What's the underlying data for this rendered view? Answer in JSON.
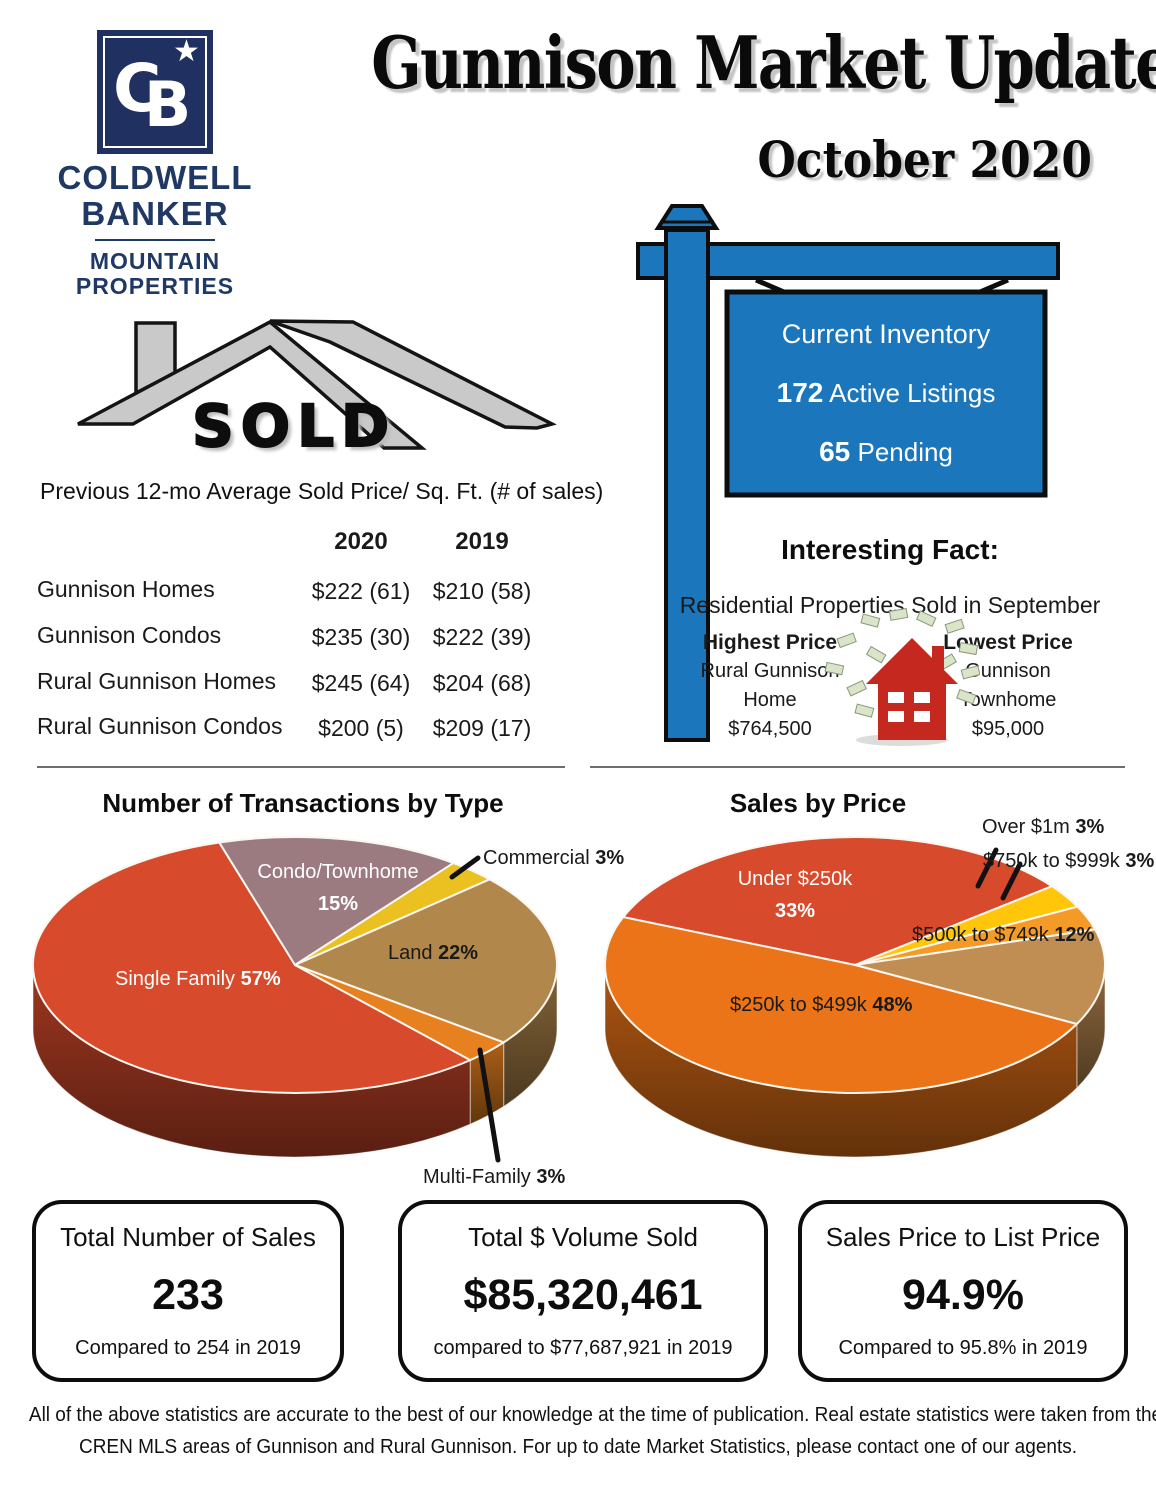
{
  "logo": {
    "monogram_c": "C",
    "monogram_b": "B",
    "star": "★",
    "name_line1": "COLDWELL",
    "name_line2": "BANKER",
    "division_line1": "MOUNTAIN",
    "division_line2": "PROPERTIES"
  },
  "header": {
    "title": "Gunnison Market Update",
    "subtitle": "October 2020"
  },
  "sold_graphic": {
    "label": "SOLD"
  },
  "inventory_sign": {
    "title": "Current Inventory",
    "active_value": "172",
    "active_label": " Active Listings",
    "pending_value": "65",
    "pending_label": " Pending"
  },
  "price_table": {
    "caption": "Previous 12-mo Average Sold Price/ Sq. Ft. (# of sales)",
    "columns": [
      "2020",
      "2019"
    ],
    "rows": [
      {
        "label": "Gunnison Homes",
        "y2020": "$222 (61)",
        "y2019": "$210 (58)"
      },
      {
        "label": "Gunnison Condos",
        "y2020": "$235 (30)",
        "y2019": "$222 (39)"
      },
      {
        "label": "Rural Gunnison Homes",
        "y2020": "$245 (64)",
        "y2019": "$204 (68)"
      },
      {
        "label": "Rural Gunnison Condos",
        "y2020": "$200 (5)",
        "y2019": "$209 (17)"
      }
    ]
  },
  "interesting_fact": {
    "heading": "Interesting Fact:",
    "subheading": "Residential Properties Sold in September",
    "highest": {
      "title": "Highest Price",
      "line1": "Rural Gunnison",
      "line2": "Home",
      "price": "$764,500"
    },
    "lowest": {
      "title": "Lowest Price",
      "line1": "Gunnison",
      "line2": "Townhome",
      "price": "$95,000"
    }
  },
  "chart_data": [
    {
      "type": "pie",
      "style": "3d",
      "title": "Number of Transactions by Type",
      "legend_position": "labels-on-chart",
      "slices": [
        {
          "label": "Single Family",
          "pct": "57%",
          "value": 57,
          "color": "#d74a2b"
        },
        {
          "label": "Condo/Townhome",
          "pct": "15%",
          "value": 15,
          "color": "#9b7a80"
        },
        {
          "label": "Commercial",
          "pct": "3%",
          "value": 3,
          "color": "#eac121"
        },
        {
          "label": "Land",
          "pct": "22%",
          "value": 22,
          "color": "#b2874b"
        },
        {
          "label": "Multi-Family",
          "pct": "3%",
          "value": 3,
          "color": "#e7801f"
        }
      ]
    },
    {
      "type": "pie",
      "style": "3d",
      "title": "Sales by Price",
      "legend_position": "labels-on-chart",
      "slices": [
        {
          "label": "Under $250k",
          "pct": "33%",
          "value": 33,
          "color": "#d74a2b"
        },
        {
          "label": "Over $1m",
          "pct": "3%",
          "value": 3,
          "color": "#ffc60a"
        },
        {
          "label": "$750k to $999k",
          "pct": "3%",
          "value": 3,
          "color": "#f39b26"
        },
        {
          "label": "$500k to $749k",
          "pct": "12%",
          "value": 12,
          "color": "#c08d52"
        },
        {
          "label": "$250k to $499k",
          "pct": "48%",
          "value": 48,
          "color": "#ec7418"
        }
      ]
    }
  ],
  "summary_boxes": [
    {
      "title": "Total Number of Sales",
      "value": "233",
      "note": "Compared to 254 in 2019"
    },
    {
      "title": "Total $ Volume Sold",
      "value": "$85,320,461",
      "note": "compared to $77,687,921 in 2019"
    },
    {
      "title": "Sales Price to List Price",
      "value": "94.9%",
      "note": "Compared to 95.8% in 2019"
    }
  ],
  "footer": {
    "line1": "All of the above statistics are accurate to the best of our knowledge at the time of publication. Real estate statistics were taken from the",
    "line2": "CREN MLS areas of Gunnison and Rural Gunnison. For up to date Market Statistics, please contact one of our agents."
  }
}
